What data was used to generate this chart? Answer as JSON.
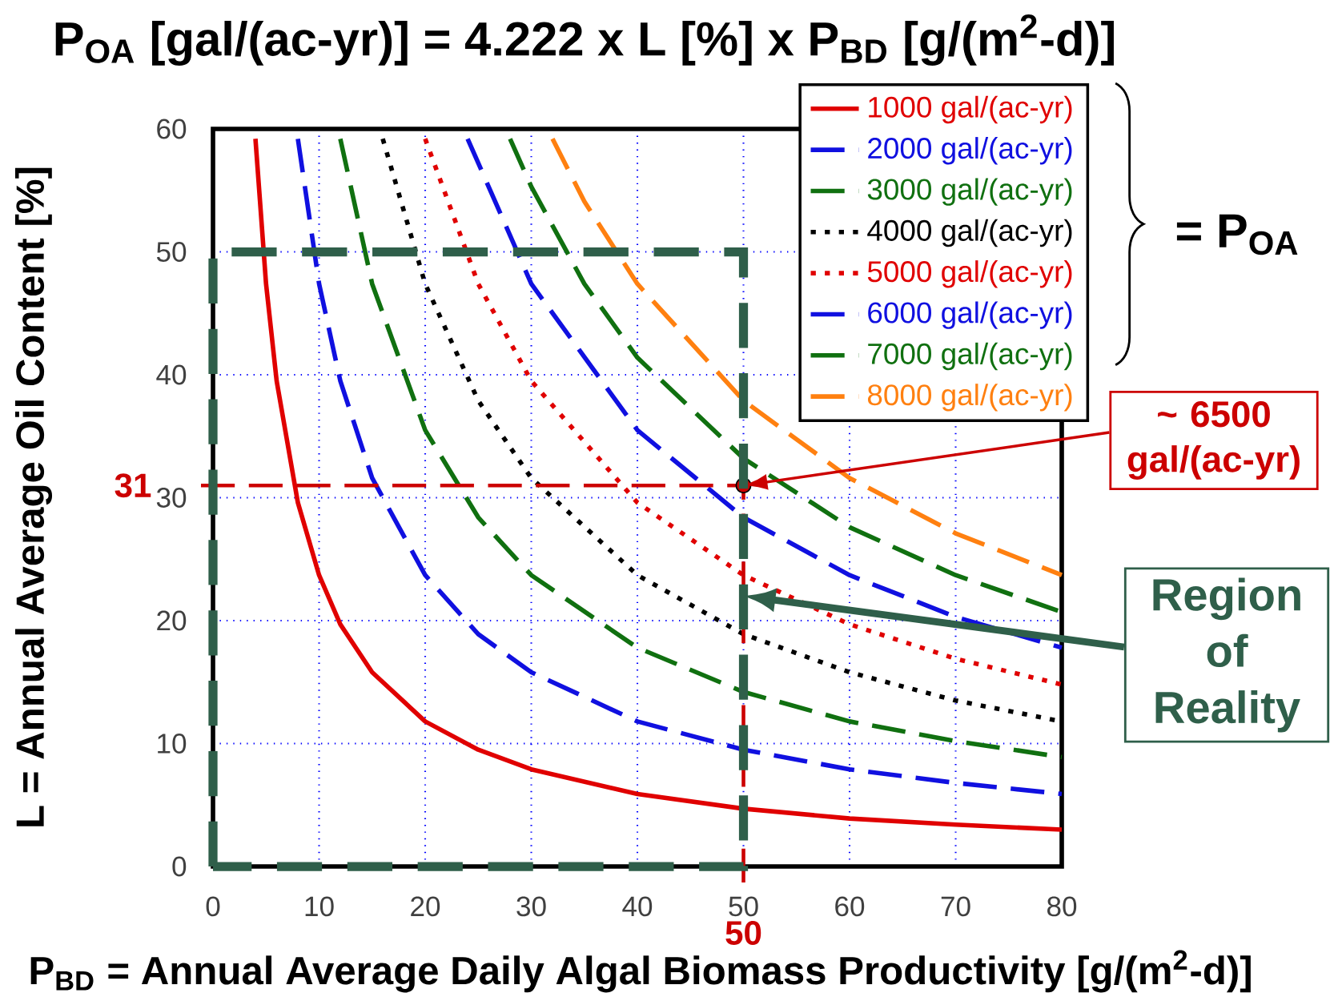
{
  "chart_data": {
    "type": "line",
    "title": "P$_{OA}$ [gal/(ac-yr)] = 4.222 x L [%] x P$_{BD}$ [g/(m$^{2}$-d)]",
    "xlabel": "P$_{BD}$ = Annual Average Daily Algal Biomass Productivity [g/(m$^{2}$-d)]",
    "ylabel": "L = Annual Average Oil Content [%]",
    "xlim": [
      0,
      80
    ],
    "ylim": [
      0,
      60
    ],
    "xticks": [
      0,
      10,
      20,
      30,
      40,
      50,
      60,
      70,
      80
    ],
    "yticks": [
      0,
      10,
      20,
      30,
      40,
      50,
      60
    ],
    "grid": true,
    "legend": "top right",
    "series": [
      {
        "name": "1000 gal/(ac-yr)",
        "color": "#e00000",
        "line_style": "solid",
        "x": [
          4,
          5,
          6,
          8,
          10,
          12,
          15,
          20,
          25,
          30,
          40,
          50,
          60,
          70,
          80
        ],
        "values": [
          59.2,
          47.4,
          39.5,
          29.6,
          23.7,
          19.7,
          15.8,
          11.8,
          9.5,
          7.9,
          5.9,
          4.7,
          3.9,
          3.4,
          3.0
        ]
      },
      {
        "name": "2000 gal/(ac-yr)",
        "color": "#1010e0",
        "line_style": "dashed",
        "x": [
          8,
          10,
          12,
          15,
          20,
          25,
          30,
          40,
          50,
          60,
          70,
          80
        ],
        "values": [
          59.2,
          47.4,
          39.5,
          31.6,
          23.7,
          18.9,
          15.8,
          11.8,
          9.5,
          7.9,
          6.8,
          5.9
        ]
      },
      {
        "name": "3000 gal/(ac-yr)",
        "color": "#107010",
        "line_style": "dashed",
        "x": [
          12,
          15,
          20,
          25,
          30,
          40,
          50,
          60,
          70,
          80
        ],
        "values": [
          59.2,
          47.4,
          35.5,
          28.4,
          23.7,
          17.8,
          14.2,
          11.8,
          10.2,
          8.9
        ]
      },
      {
        "name": "4000 gal/(ac-yr)",
        "color": "#000000",
        "line_style": "dotted",
        "x": [
          16,
          20,
          25,
          30,
          40,
          50,
          60,
          70,
          80
        ],
        "values": [
          59.2,
          47.4,
          37.9,
          31.6,
          23.7,
          18.9,
          15.8,
          13.5,
          11.8
        ]
      },
      {
        "name": "5000 gal/(ac-yr)",
        "color": "#e00000",
        "line_style": "dotted",
        "x": [
          20,
          25,
          30,
          40,
          50,
          60,
          70,
          80
        ],
        "values": [
          59.2,
          47.4,
          39.5,
          29.6,
          23.7,
          19.7,
          16.9,
          14.8
        ]
      },
      {
        "name": "6000 gal/(ac-yr)",
        "color": "#1010e0",
        "line_style": "dashed",
        "x": [
          24,
          30,
          40,
          50,
          60,
          70,
          80
        ],
        "values": [
          59.2,
          47.4,
          35.5,
          28.4,
          23.7,
          20.3,
          17.8
        ]
      },
      {
        "name": "7000 gal/(ac-yr)",
        "color": "#107010",
        "line_style": "dashed",
        "x": [
          28,
          30,
          35,
          40,
          50,
          60,
          70,
          80
        ],
        "values": [
          59.2,
          55.3,
          47.4,
          41.4,
          33.2,
          27.6,
          23.7,
          20.7
        ]
      },
      {
        "name": "8000 gal/(ac-yr)",
        "color": "#ff8010",
        "line_style": "dashed",
        "x": [
          32,
          35,
          40,
          50,
          60,
          70,
          80
        ],
        "values": [
          59.2,
          54.1,
          47.4,
          37.9,
          31.6,
          27.1,
          23.7
        ]
      },
      {
        "type": "scatter",
        "color": "#cc0000",
        "marker": "circle",
        "x": [
          50
        ],
        "values": [
          31
        ]
      }
    ],
    "ref_lines": [
      {
        "axis": "x",
        "value": 50,
        "label": "50",
        "color": "#cc0000",
        "line_style": "dashed"
      },
      {
        "axis": "y",
        "value": 31,
        "label": "31",
        "color": "#cc0000",
        "line_style": "dashed"
      }
    ],
    "annotations": [
      "~ 6500 gal/(ac-yr)",
      "= P$_{OA}$",
      "Region of Reality"
    ]
  }
}
